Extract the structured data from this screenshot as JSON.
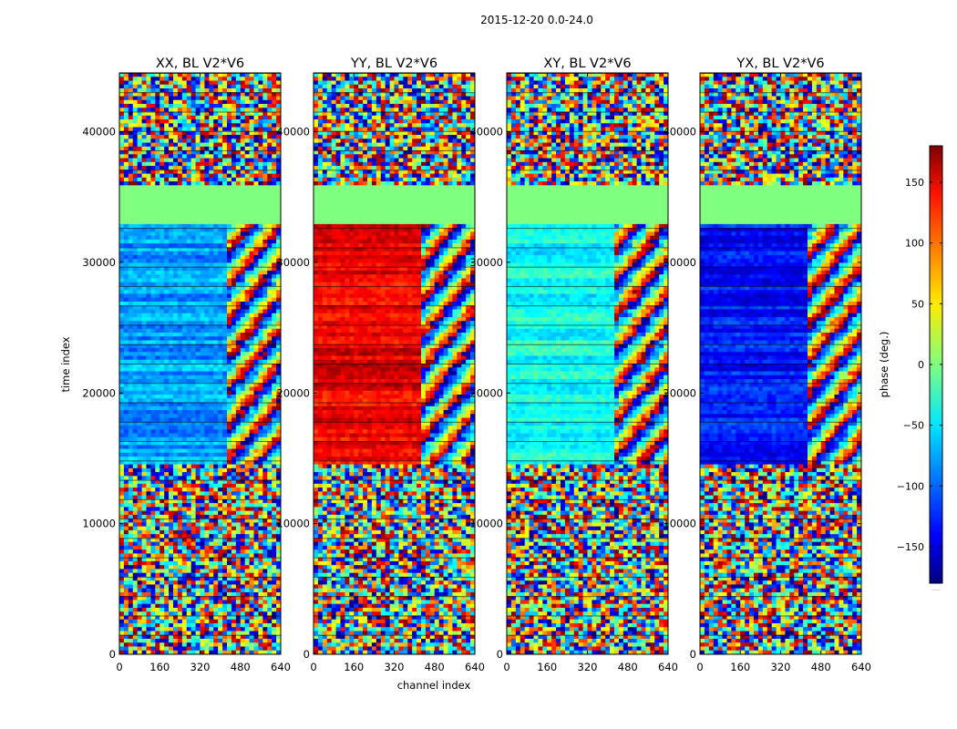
{
  "figure": {
    "suptitle": "2015-12-20 0.0-24.0"
  },
  "chart_data": {
    "type": "heatmap",
    "xlabel": "channel index",
    "ylabel": "time index",
    "xlim": [
      0,
      640
    ],
    "ylim": [
      0,
      44500
    ],
    "xticks": [
      0,
      160,
      320,
      480,
      640
    ],
    "yticks": [
      0,
      10000,
      20000,
      30000,
      40000
    ],
    "colorbar": {
      "label": "phase (deg.)",
      "range": [
        -180,
        180
      ],
      "ticks": [
        150,
        100,
        50,
        0,
        -50,
        -100,
        -150
      ],
      "tick_labels": [
        "150",
        "100",
        "50",
        "0",
        "−50",
        "−100",
        "−150"
      ],
      "colormap": "jet",
      "footer": "....."
    },
    "panels": [
      {
        "title": "XX, BL V2*V6",
        "dominant_phase": -80
      },
      {
        "title": "YY, BL V2*V6",
        "dominant_phase": 140
      },
      {
        "title": "XY, BL V2*V6",
        "dominant_phase": -40
      },
      {
        "title": "YX, BL V2*V6",
        "dominant_phase": -130
      }
    ]
  },
  "colors": {
    "jet_low": "#00007f",
    "jet_mid": "#7fff7f",
    "jet_high": "#7f0000"
  }
}
